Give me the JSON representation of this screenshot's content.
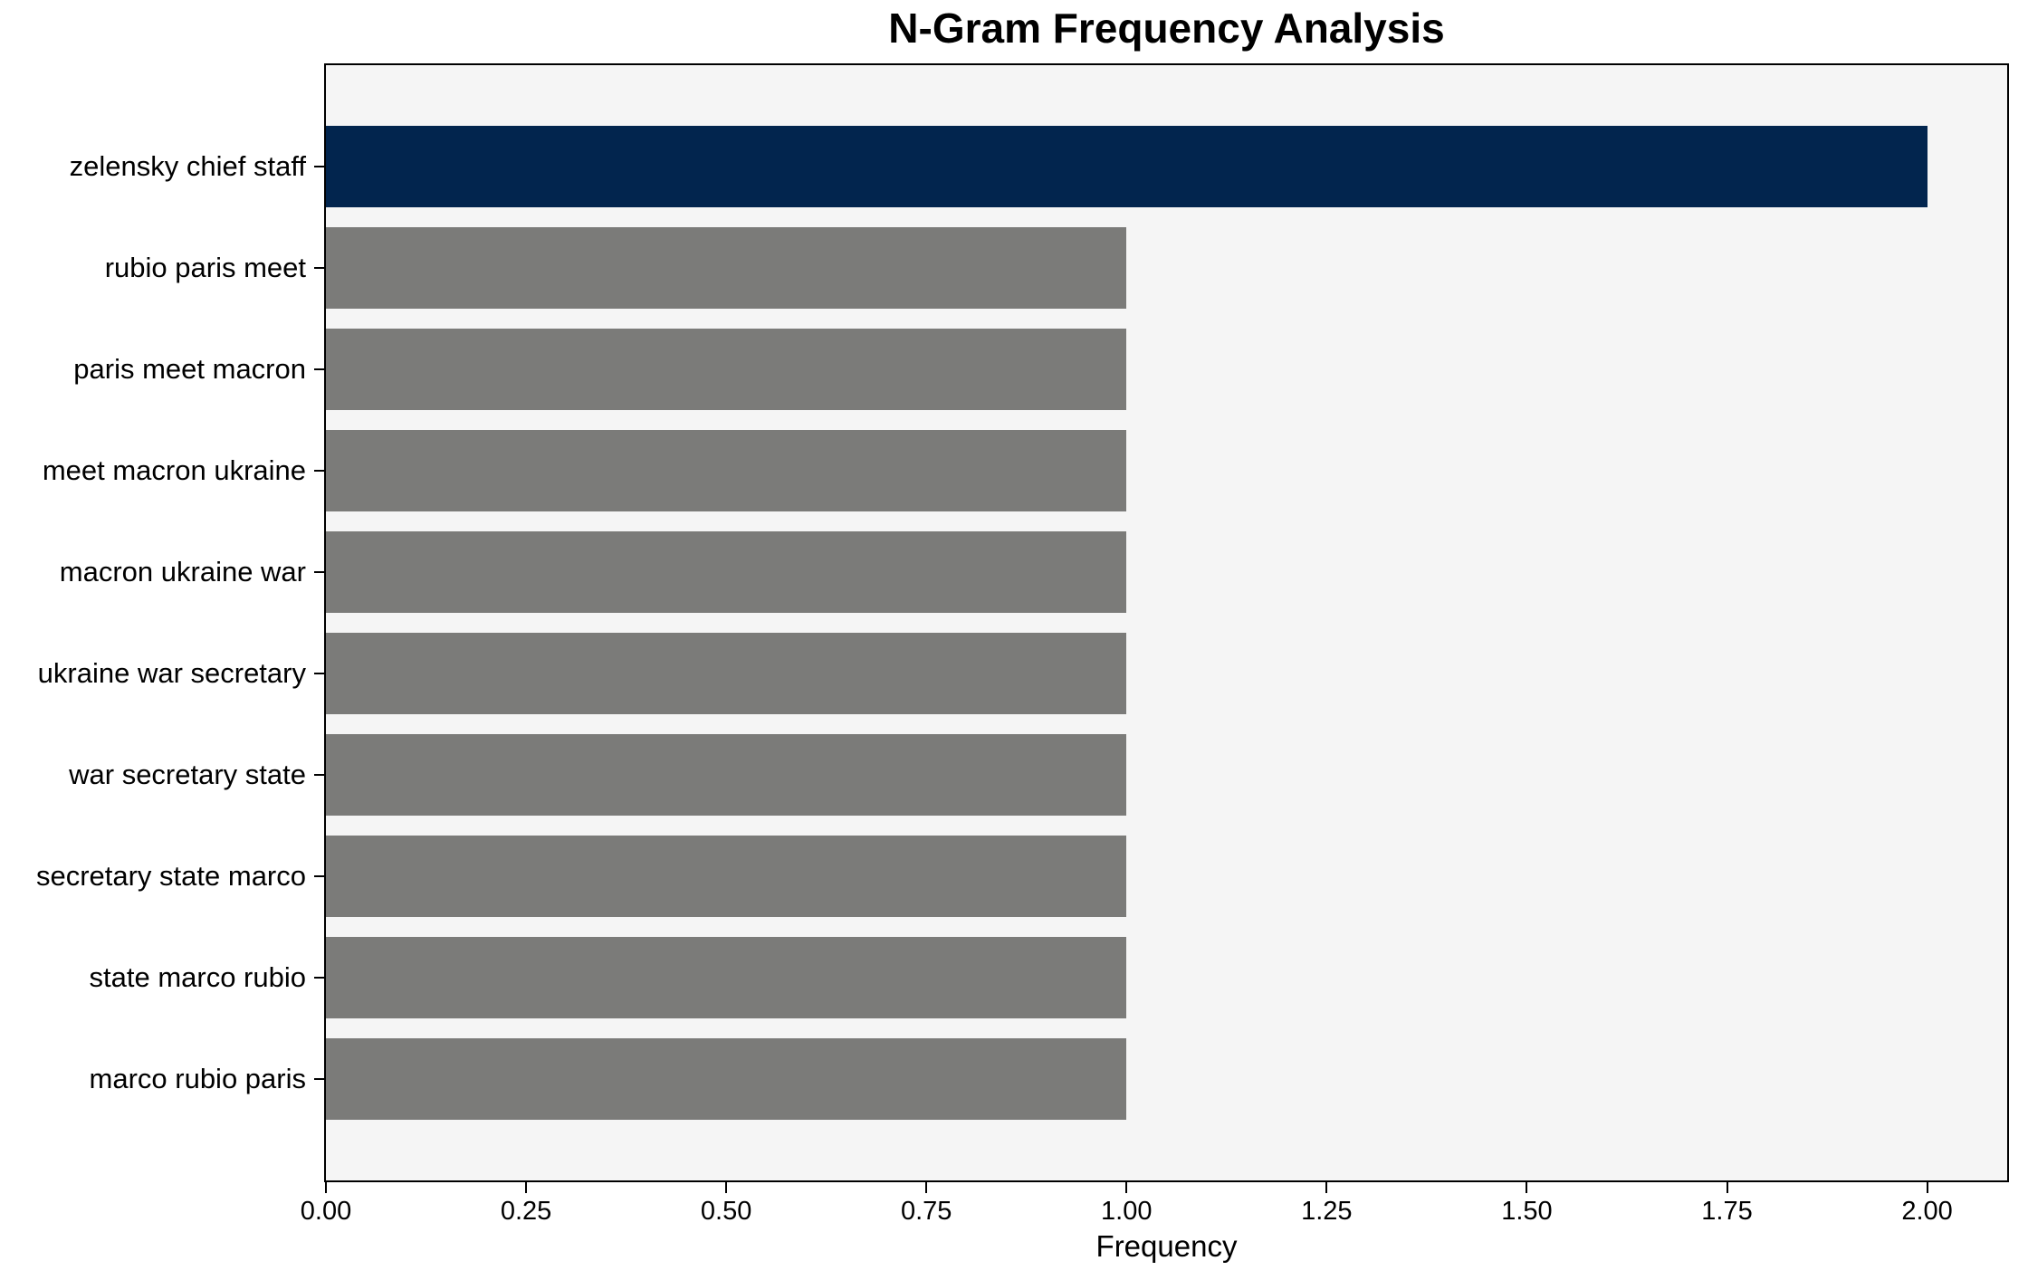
{
  "chart_data": {
    "type": "bar",
    "orientation": "horizontal",
    "title": "N-Gram Frequency Analysis",
    "xlabel": "Frequency",
    "ylabel": "",
    "categories": [
      "zelensky chief staff",
      "rubio paris meet",
      "paris meet macron",
      "meet macron ukraine",
      "macron ukraine war",
      "ukraine war secretary",
      "war secretary state",
      "secretary state marco",
      "state marco rubio",
      "marco rubio paris"
    ],
    "values": [
      2,
      1,
      1,
      1,
      1,
      1,
      1,
      1,
      1,
      1
    ],
    "bar_colors": [
      "#02254e",
      "#7b7b79",
      "#7b7b79",
      "#7b7b79",
      "#7b7b79",
      "#7b7b79",
      "#7b7b79",
      "#7b7b79",
      "#7b7b79",
      "#7b7b79"
    ],
    "xlim": [
      0,
      2.1
    ],
    "x_ticks": [
      0,
      0.25,
      0.5,
      0.75,
      1.0,
      1.25,
      1.5,
      1.75,
      2.0
    ],
    "x_tick_labels": [
      "0.00",
      "0.25",
      "0.50",
      "0.75",
      "1.00",
      "1.25",
      "1.50",
      "1.75",
      "2.00"
    ],
    "grid": false,
    "legend": null,
    "colors": {
      "highlight_bar": "#02254e",
      "default_bar": "#7b7b79",
      "plot_background": "#f5f5f5",
      "figure_background": "#ffffff",
      "spine": "#000000",
      "text": "#000000"
    }
  }
}
